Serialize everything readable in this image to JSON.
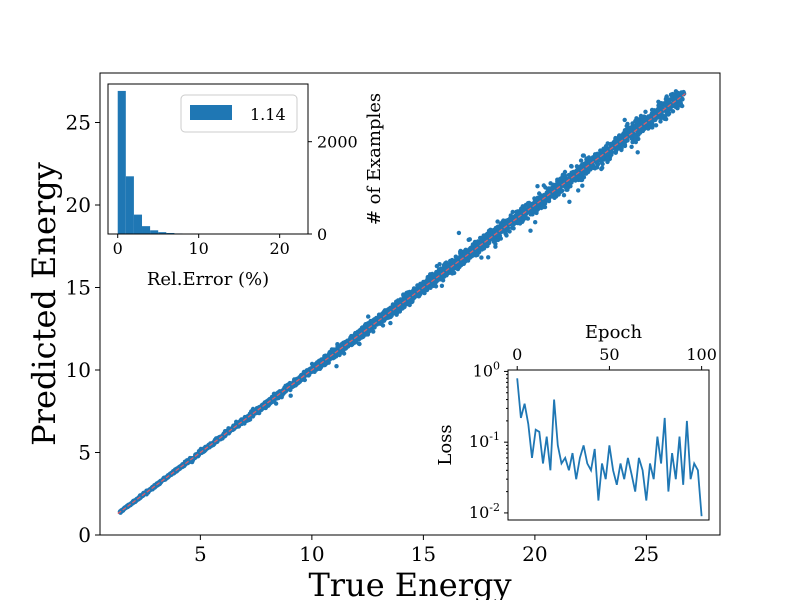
{
  "chart_data": [
    {
      "id": "main",
      "type": "scatter",
      "title": "",
      "xlabel": "True Energy",
      "ylabel": "Predicted Energy",
      "xlim": [
        0.5,
        28.3
      ],
      "ylim": [
        0,
        28.0
      ],
      "xticks": [
        5,
        10,
        15,
        20,
        25
      ],
      "yticks": [
        0,
        5,
        10,
        15,
        20,
        25
      ],
      "point_color": "#1f77b4",
      "reference_line": {
        "from": [
          1.3,
          1.3
        ],
        "to": [
          26.8,
          26.8
        ],
        "color": "#ff5a5a",
        "style": "dashed"
      },
      "n_points_approx": 4000,
      "x_range_of_points": [
        1.4,
        26.7
      ],
      "noise_pct_approx": 1.1
    },
    {
      "id": "histogram-inset",
      "type": "bar",
      "xlabel": "Rel.Error (%)",
      "ylabel": "# of Examples",
      "xlim": [
        -1.2,
        23.5
      ],
      "ylim": [
        0,
        3250
      ],
      "xticks": [
        0,
        10,
        20
      ],
      "yticks": [
        0,
        2000
      ],
      "legend": {
        "label": "1.14",
        "placement": "top-right"
      },
      "bin_width": 1.0,
      "bins": [
        {
          "x": 0,
          "value": 3100
        },
        {
          "x": 1,
          "value": 1250
        },
        {
          "x": 2,
          "value": 420
        },
        {
          "x": 3,
          "value": 170
        },
        {
          "x": 4,
          "value": 80
        },
        {
          "x": 5,
          "value": 40
        },
        {
          "x": 6,
          "value": 22
        },
        {
          "x": 7,
          "value": 12
        },
        {
          "x": 8,
          "value": 8
        },
        {
          "x": 9,
          "value": 5
        },
        {
          "x": 10,
          "value": 3
        },
        {
          "x": 11,
          "value": 2
        }
      ],
      "color": "#1f77b4"
    },
    {
      "id": "loss-inset",
      "type": "line",
      "xlabel": "Epoch",
      "ylabel": "Loss",
      "xlim": [
        -5,
        104
      ],
      "ylim_log10": [
        -2.1,
        0.02
      ],
      "xticks": [
        0,
        50,
        100
      ],
      "yticks": [
        "10^0",
        "10^-1",
        "10^-2"
      ],
      "log_scale_y": true,
      "color": "#1f77b4",
      "series": [
        {
          "x": [
            0,
            2,
            4,
            6,
            8,
            10,
            12,
            14,
            16,
            18,
            20,
            22,
            24,
            26,
            28,
            30,
            32,
            34,
            36,
            38,
            40,
            42,
            44,
            46,
            48,
            50,
            52,
            54,
            56,
            58,
            60,
            62,
            64,
            66,
            68,
            70,
            72,
            74,
            76,
            78,
            80,
            82,
            84,
            86,
            88,
            90,
            92,
            94,
            96,
            98,
            100
          ],
          "values": [
            0.8,
            0.22,
            0.35,
            0.18,
            0.06,
            0.15,
            0.14,
            0.05,
            0.12,
            0.04,
            0.4,
            0.09,
            0.05,
            0.06,
            0.04,
            0.07,
            0.03,
            0.06,
            0.09,
            0.05,
            0.04,
            0.08,
            0.015,
            0.05,
            0.03,
            0.09,
            0.04,
            0.025,
            0.05,
            0.03,
            0.06,
            0.035,
            0.02,
            0.06,
            0.04,
            0.015,
            0.05,
            0.03,
            0.12,
            0.05,
            0.22,
            0.02,
            0.07,
            0.03,
            0.12,
            0.025,
            0.2,
            0.03,
            0.05,
            0.04,
            0.009
          ]
        }
      ]
    }
  ]
}
